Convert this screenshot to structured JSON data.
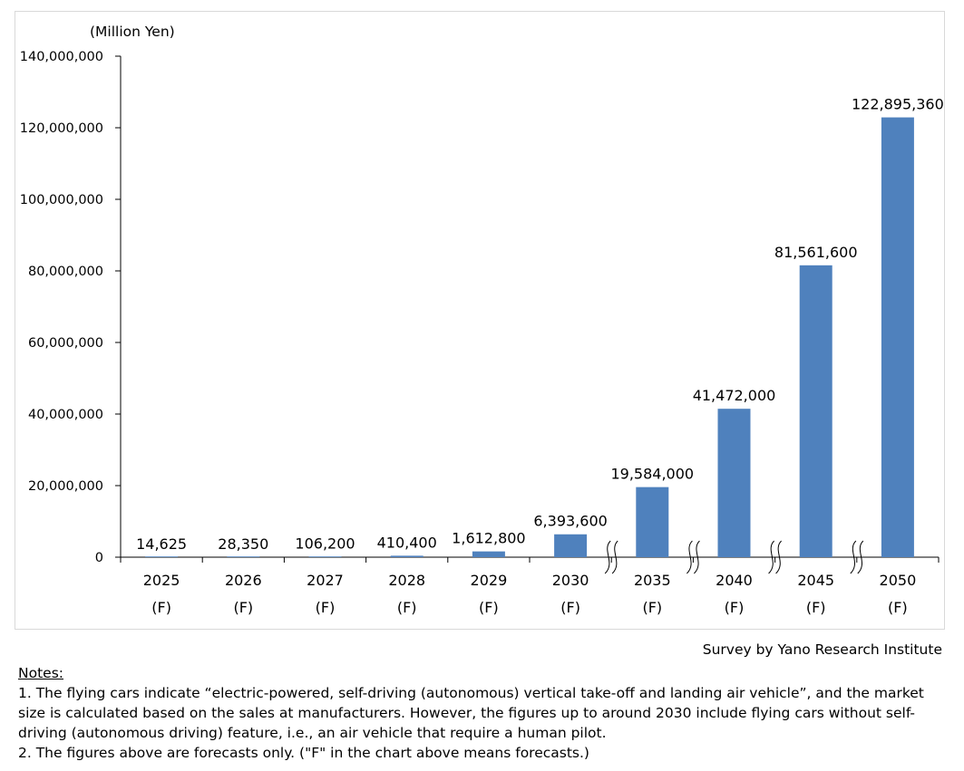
{
  "chart_data": {
    "type": "bar",
    "unit_label": "(Million Yen)",
    "categories": [
      "2025",
      "2026",
      "2027",
      "2028",
      "2029",
      "2030",
      "2035",
      "2040",
      "2045",
      "2050"
    ],
    "category_sublabels": [
      "(F)",
      "(F)",
      "(F)",
      "(F)",
      "(F)",
      "(F)",
      "(F)",
      "(F)",
      "(F)",
      "(F)"
    ],
    "values": [
      14625,
      28350,
      106200,
      410400,
      1612800,
      6393600,
      19584000,
      41472000,
      81561600,
      122895360
    ],
    "data_labels": [
      "14,625",
      "28,350",
      "106,200",
      "410,400",
      "1,612,800",
      "6,393,600",
      "19,584,000",
      "41,472,000",
      "81,561,600",
      "122,895,360"
    ],
    "ylim": [
      0,
      140000000
    ],
    "y_ticks": [
      0,
      20000000,
      40000000,
      60000000,
      80000000,
      100000000,
      120000000,
      140000000
    ],
    "y_tick_labels": [
      "0",
      "20,000,000",
      "40,000,000",
      "60,000,000",
      "80,000,000",
      "100,000,000",
      "120,000,000",
      "140,000,000"
    ],
    "axis_breaks_after": [
      "2030",
      "2035",
      "2040",
      "2045"
    ],
    "bar_color": "#4f81bd",
    "grid": false,
    "legend": "none"
  },
  "source": "Survey by Yano Research Institute",
  "notes": {
    "title": "Notes:",
    "lines": [
      "1. The flying cars indicate “electric-powered, self-driving (autonomous) vertical take-off and landing air vehicle”, and the market size is calculated based on the sales at manufacturers. However, the figures up to around 2030 include flying cars without self-driving (autonomous driving) feature, i.e., an air vehicle that require a human pilot.",
      "2.  The figures above are forecasts only. (\"F\" in the chart above means forecasts.)"
    ]
  }
}
